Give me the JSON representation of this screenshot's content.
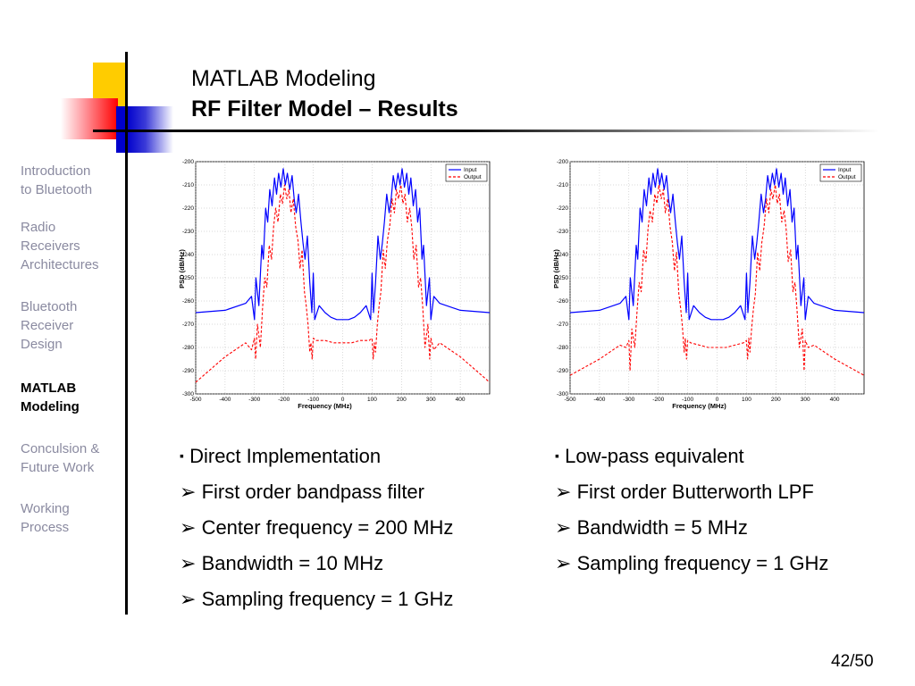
{
  "header": {
    "title_line1": "MATLAB Modeling",
    "title_line2": "RF Filter Model – Results"
  },
  "sidebar": {
    "items": [
      {
        "label_lines": [
          "Introduction",
          "to Bluetooth"
        ],
        "active": false
      },
      {
        "label_lines": [
          "Radio",
          "Receivers",
          "Architectures"
        ],
        "active": false
      },
      {
        "label_lines": [
          "Bluetooth",
          "Receiver",
          "Design"
        ],
        "active": false
      },
      {
        "label_lines": [
          "MATLAB",
          "Modeling"
        ],
        "active": true
      },
      {
        "label_lines": [
          "Conculsion &",
          "Future Work"
        ],
        "active": false
      },
      {
        "label_lines": [
          "Working",
          "Process"
        ],
        "active": false
      }
    ]
  },
  "colors": {
    "input_series": "#0000ff",
    "output_series": "#ff0000",
    "sidebar_inactive": "#8a8aa0"
  },
  "chart_data": [
    {
      "type": "line",
      "xlabel": "Frequency (MHz)",
      "ylabel": "PSD (dB/Hz)",
      "xlim": [
        -500,
        500
      ],
      "ylim": [
        -300,
        -200
      ],
      "xticks": [
        -500,
        -400,
        -300,
        -200,
        -100,
        0,
        100,
        200,
        300,
        400
      ],
      "yticks": [
        -200,
        -210,
        -220,
        -230,
        -240,
        -250,
        -260,
        -270,
        -280,
        -290,
        -300
      ],
      "grid": true,
      "legend_position": "top-right",
      "series": [
        {
          "name": "Input",
          "style": "solid",
          "x": [
            -500,
            -400,
            -330,
            -310,
            -300,
            -295,
            -285,
            -275,
            -270,
            -262,
            -255,
            -248,
            -240,
            -232,
            -225,
            -218,
            -210,
            -202,
            -195,
            -188,
            -180,
            -172,
            -165,
            -158,
            -150,
            -142,
            -135,
            -128,
            -120,
            -112,
            -105,
            -100,
            -95,
            -80,
            -60,
            -40,
            -20,
            0,
            20,
            40,
            60,
            80,
            95,
            100,
            105,
            112,
            120,
            128,
            135,
            142,
            150,
            158,
            165,
            172,
            180,
            188,
            195,
            202,
            210,
            218,
            225,
            232,
            240,
            248,
            255,
            262,
            270,
            275,
            285,
            295,
            300,
            310,
            330,
            400,
            500
          ],
          "y": [
            -265,
            -264,
            -261,
            -258,
            -268,
            -250,
            -262,
            -236,
            -242,
            -220,
            -226,
            -212,
            -219,
            -207,
            -214,
            -205,
            -211,
            -203,
            -210,
            -205,
            -212,
            -206,
            -216,
            -222,
            -214,
            -226,
            -235,
            -242,
            -232,
            -252,
            -265,
            -248,
            -268,
            -262,
            -265,
            -267,
            -268,
            -268,
            -268,
            -267,
            -265,
            -262,
            -268,
            -248,
            -265,
            -252,
            -232,
            -242,
            -235,
            -226,
            -214,
            -222,
            -216,
            -206,
            -212,
            -205,
            -210,
            -203,
            -211,
            -205,
            -214,
            -207,
            -219,
            -212,
            -226,
            -220,
            -242,
            -236,
            -262,
            -250,
            -268,
            -258,
            -261,
            -264,
            -265
          ]
        },
        {
          "name": "Output",
          "style": "dashed",
          "x": [
            -500,
            -400,
            -330,
            -310,
            -300,
            -296,
            -290,
            -280,
            -272,
            -265,
            -258,
            -250,
            -242,
            -235,
            -228,
            -220,
            -212,
            -205,
            -198,
            -190,
            -183,
            -176,
            -168,
            -160,
            -152,
            -145,
            -138,
            -130,
            -124,
            -118,
            -112,
            -108,
            -104,
            -100,
            -90,
            -60,
            -30,
            0,
            30,
            60,
            90,
            100,
            104,
            108,
            112,
            118,
            124,
            130,
            138,
            145,
            152,
            160,
            168,
            176,
            183,
            190,
            198,
            205,
            212,
            220,
            228,
            235,
            242,
            250,
            258,
            265,
            272,
            280,
            290,
            296,
            300,
            310,
            330,
            400,
            500
          ],
          "y": [
            -295,
            -284,
            -278,
            -281,
            -276,
            -285,
            -270,
            -280,
            -262,
            -250,
            -254,
            -236,
            -242,
            -228,
            -220,
            -226,
            -214,
            -218,
            -210,
            -216,
            -212,
            -222,
            -216,
            -228,
            -234,
            -246,
            -238,
            -256,
            -262,
            -270,
            -282,
            -278,
            -285,
            -276,
            -277,
            -277,
            -278,
            -278,
            -278,
            -277,
            -277,
            -276,
            -285,
            -278,
            -282,
            -270,
            -262,
            -256,
            -238,
            -246,
            -234,
            -228,
            -216,
            -222,
            -212,
            -216,
            -210,
            -218,
            -214,
            -226,
            -220,
            -228,
            -242,
            -236,
            -254,
            -250,
            -262,
            -280,
            -270,
            -285,
            -276,
            -281,
            -278,
            -284,
            -295
          ]
        }
      ]
    },
    {
      "type": "line",
      "xlabel": "Frequency (MHz)",
      "ylabel": "PSD (dB/Hz)",
      "xlim": [
        -500,
        500
      ],
      "ylim": [
        -300,
        -200
      ],
      "xticks": [
        -500,
        -400,
        -300,
        -200,
        -100,
        0,
        100,
        200,
        300,
        400
      ],
      "yticks": [
        -200,
        -210,
        -220,
        -230,
        -240,
        -250,
        -260,
        -270,
        -280,
        -290,
        -300
      ],
      "grid": true,
      "legend_position": "top-right",
      "series": [
        {
          "name": "Input",
          "style": "solid",
          "x": [
            -500,
            -400,
            -330,
            -310,
            -300,
            -295,
            -285,
            -275,
            -270,
            -262,
            -255,
            -248,
            -240,
            -232,
            -225,
            -218,
            -210,
            -202,
            -195,
            -188,
            -180,
            -172,
            -165,
            -158,
            -150,
            -142,
            -135,
            -128,
            -120,
            -112,
            -105,
            -100,
            -95,
            -80,
            -60,
            -40,
            -20,
            0,
            20,
            40,
            60,
            80,
            95,
            100,
            105,
            112,
            120,
            128,
            135,
            142,
            150,
            158,
            165,
            172,
            180,
            188,
            195,
            202,
            210,
            218,
            225,
            232,
            240,
            248,
            255,
            262,
            270,
            275,
            285,
            295,
            300,
            310,
            330,
            400,
            500
          ],
          "y": [
            -265,
            -264,
            -261,
            -258,
            -268,
            -250,
            -262,
            -236,
            -242,
            -220,
            -226,
            -212,
            -219,
            -207,
            -214,
            -205,
            -211,
            -203,
            -210,
            -205,
            -212,
            -206,
            -216,
            -222,
            -214,
            -226,
            -235,
            -242,
            -232,
            -252,
            -265,
            -248,
            -268,
            -262,
            -265,
            -267,
            -268,
            -268,
            -268,
            -267,
            -265,
            -262,
            -268,
            -248,
            -265,
            -252,
            -232,
            -242,
            -235,
            -226,
            -214,
            -222,
            -216,
            -206,
            -212,
            -205,
            -210,
            -203,
            -211,
            -205,
            -214,
            -207,
            -219,
            -212,
            -226,
            -220,
            -242,
            -236,
            -262,
            -250,
            -268,
            -258,
            -261,
            -264,
            -265
          ]
        },
        {
          "name": "Output",
          "style": "dashed",
          "x": [
            -500,
            -400,
            -330,
            -310,
            -300,
            -296,
            -290,
            -280,
            -272,
            -265,
            -258,
            -250,
            -242,
            -235,
            -228,
            -220,
            -212,
            -205,
            -198,
            -190,
            -183,
            -176,
            -168,
            -160,
            -152,
            -145,
            -138,
            -130,
            -124,
            -118,
            -112,
            -108,
            -104,
            -100,
            -90,
            -60,
            -30,
            0,
            30,
            60,
            90,
            100,
            104,
            108,
            112,
            118,
            124,
            130,
            138,
            145,
            152,
            160,
            168,
            176,
            183,
            190,
            198,
            205,
            212,
            220,
            228,
            235,
            242,
            250,
            258,
            265,
            272,
            280,
            290,
            296,
            300,
            310,
            330,
            400,
            500
          ],
          "y": [
            -292,
            -285,
            -279,
            -280,
            -277,
            -290,
            -272,
            -280,
            -264,
            -252,
            -256,
            -238,
            -243,
            -229,
            -221,
            -226,
            -214,
            -218,
            -210,
            -216,
            -212,
            -222,
            -216,
            -228,
            -235,
            -247,
            -239,
            -257,
            -263,
            -271,
            -282,
            -276,
            -285,
            -277,
            -278,
            -279,
            -280,
            -280,
            -280,
            -279,
            -278,
            -277,
            -285,
            -276,
            -282,
            -271,
            -263,
            -257,
            -239,
            -247,
            -235,
            -228,
            -216,
            -222,
            -212,
            -216,
            -210,
            -218,
            -214,
            -226,
            -221,
            -229,
            -243,
            -238,
            -256,
            -252,
            -264,
            -280,
            -272,
            -290,
            -277,
            -280,
            -279,
            -285,
            -292
          ]
        }
      ]
    }
  ],
  "bullets_left": [
    {
      "marker": "▪",
      "text": "Direct Implementation"
    },
    {
      "marker": "➢",
      "text": "First order bandpass filter"
    },
    {
      "marker": "➢",
      "text": "Center frequency = 200 MHz"
    },
    {
      "marker": "➢",
      "text": "Bandwidth = 10 MHz"
    },
    {
      "marker": "➢",
      "text": "Sampling frequency = 1 GHz"
    }
  ],
  "bullets_right": [
    {
      "marker": "▪",
      "text": "Low-pass equivalent"
    },
    {
      "marker": "➢",
      "text": "First order Butterworth LPF"
    },
    {
      "marker": "➢",
      "text": "Bandwidth = 5 MHz"
    },
    {
      "marker": "➢",
      "text": "Sampling frequency = 1 GHz"
    }
  ],
  "footer": {
    "page_number": "42/50"
  }
}
